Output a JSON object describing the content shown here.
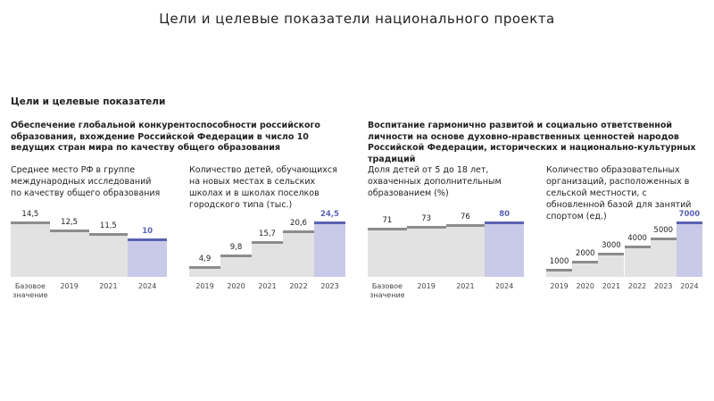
{
  "title": "Цели и целевые показатели национального проекта",
  "section": "Цели и целевые показатели",
  "groups": [
    "Обеспечение глобальной конкурентоспособности российского образования, вхождение Российской Федерации в число 10 ведущих стран мира по качеству общего образования",
    "Воспитание гармонично развитой и социально ответственной личности на основе духовно-нравственных ценностей народов Российской Федерации, исторических и национально-культурных традиций"
  ],
  "chart_data": [
    {
      "type": "bar",
      "title": "Среднее место РФ в группе международных исследований по качеству общего образования",
      "categories": [
        "Базовое значение",
        "2019",
        "2021",
        "2024"
      ],
      "values": [
        14.5,
        12.5,
        11.5,
        10
      ],
      "value_labels": [
        "14,5",
        "12,5",
        "11,5",
        "10"
      ],
      "color": "#e2e2e2",
      "line_color": "#8c8c8c",
      "highlight_color": "#c9c9e8",
      "highlight_line_color": "#5a62b3"
    },
    {
      "type": "bar",
      "title": "Количество детей, обучающихся на новых местах в сельских школах и в школах поселков городского типа (тыс.)",
      "categories": [
        "2019",
        "2020",
        "2021",
        "2022",
        "2023"
      ],
      "values": [
        4.9,
        9.8,
        15.7,
        20.6,
        24.5
      ],
      "value_labels": [
        "4,9",
        "9,8",
        "15,7",
        "20,6",
        "24,5"
      ],
      "color": "#e2e2e2",
      "line_color": "#8c8c8c",
      "highlight_color": "#c9c9e8",
      "highlight_line_color": "#5a62b3"
    },
    {
      "type": "bar",
      "title": "Доля детей от 5 до 18 лет, охваченных дополнительным образованием (%)",
      "categories": [
        "Базовое значение",
        "2019",
        "2021",
        "2024"
      ],
      "values": [
        71,
        73,
        76,
        80
      ],
      "color": "#e2e2e2",
      "line_color": "#8c8c8c",
      "highlight_color": "#c9c9e8",
      "highlight_line_color": "#5a62b3"
    },
    {
      "type": "bar",
      "title": "Количество образовательных организаций, расположенных в сельской местности, с обновленной базой для занятий спортом (ед.)",
      "categories": [
        "2019",
        "2020",
        "2021",
        "2022",
        "2023",
        "2024"
      ],
      "values": [
        1000,
        2000,
        3000,
        4000,
        5000,
        7000
      ],
      "color": "#e2e2e2",
      "line_color": "#8c8c8c",
      "highlight_color": "#c9c9e8",
      "highlight_line_color": "#5a62b3"
    }
  ]
}
